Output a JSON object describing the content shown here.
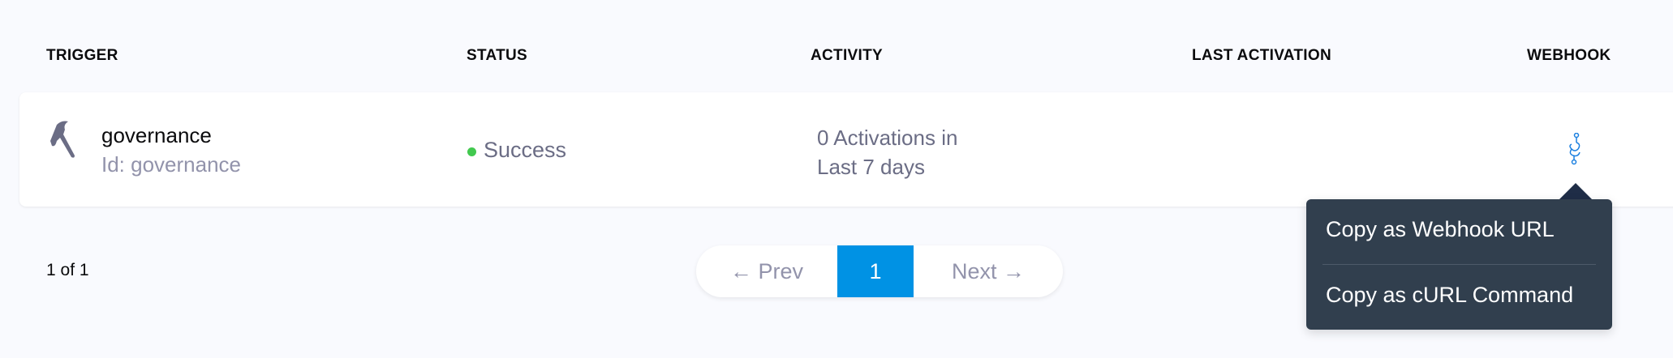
{
  "table": {
    "headers": [
      "TRIGGER",
      "STATUS",
      "ACTIVITY",
      "LAST ACTIVATION",
      "WEBHOOK"
    ],
    "rows": [
      {
        "icon": "hammer-icon",
        "name": "governance",
        "id_label": "Id: governance",
        "status": "Success",
        "status_color": "#42c94f",
        "activity_line1": "0 Activations in",
        "activity_line2": "Last 7 days",
        "last_activation": "",
        "webhook_icon": "webhook-icon"
      }
    ]
  },
  "pagination": {
    "count_label": "1 of 1",
    "prev_label": "← Prev",
    "current_page": "1",
    "next_label": "Next →",
    "accent": "#0092e4"
  },
  "webhook_menu": {
    "items": [
      "Copy as Webhook URL",
      "Copy as cURL Command"
    ]
  }
}
